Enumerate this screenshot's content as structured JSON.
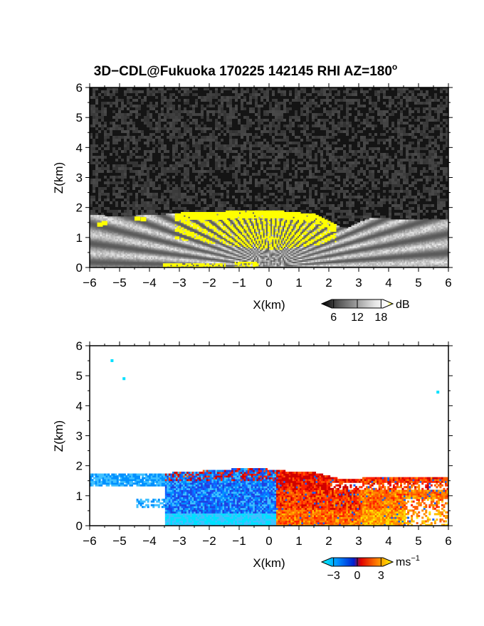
{
  "title": "3D−CDL@Fukuoka 170225 142145 RHI AZ=180",
  "title_degree": "o",
  "chart_data": [
    {
      "type": "heatmap",
      "quantity": "signal intensity",
      "xlabel": "X(km)",
      "ylabel": "Z(km)",
      "xlim": [
        -6,
        6
      ],
      "ylim": [
        0,
        6
      ],
      "x_ticks": [
        -6,
        -5,
        -4,
        -3,
        -2,
        -1,
        0,
        1,
        2,
        3,
        4,
        5,
        6
      ],
      "y_ticks": [
        0,
        1,
        2,
        3,
        4,
        5,
        6
      ],
      "background": "noise",
      "echo_top_km": [
        {
          "x": -6.0,
          "z": 1.75
        },
        {
          "x": -5.5,
          "z": 1.7
        },
        {
          "x": -4.5,
          "z": 1.7
        },
        {
          "x": -3.5,
          "z": 1.75
        },
        {
          "x": -2.5,
          "z": 1.85
        },
        {
          "x": -1.5,
          "z": 1.85
        },
        {
          "x": -0.5,
          "z": 1.9
        },
        {
          "x": 0.5,
          "z": 1.85
        },
        {
          "x": 1.5,
          "z": 1.75
        },
        {
          "x": 2.2,
          "z": 1.4
        },
        {
          "x": 2.5,
          "z": 1.25
        },
        {
          "x": 3.0,
          "z": 1.5
        },
        {
          "x": 3.5,
          "z": 1.65
        },
        {
          "x": 4.0,
          "z": 1.6
        },
        {
          "x": 5.0,
          "z": 1.6
        },
        {
          "x": 6.0,
          "z": 1.6
        }
      ],
      "strong_echo_region_x_km": [
        -3.2,
        2.2
      ],
      "colorbar": {
        "label": "dB",
        "ticks": [
          6,
          12,
          18
        ],
        "range": [
          3,
          21
        ],
        "colors": [
          "#000000",
          "#5a5a5a",
          "#a0a0a0",
          "#dcdcdc",
          "#ffffff",
          "#ffff00"
        ]
      }
    },
    {
      "type": "heatmap",
      "quantity": "radial velocity",
      "xlabel": "X(km)",
      "ylabel": "Z(km)",
      "xlim": [
        -6,
        6
      ],
      "ylim": [
        0,
        6
      ],
      "x_ticks": [
        -6,
        -5,
        -4,
        -3,
        -2,
        -1,
        0,
        1,
        2,
        3,
        4,
        5,
        6
      ],
      "y_ticks": [
        0,
        1,
        2,
        3,
        4,
        5,
        6
      ],
      "echo_top_km": [
        {
          "x": -6.0,
          "z": 1.7
        },
        {
          "x": -4.5,
          "z": 1.7
        },
        {
          "x": -3.0,
          "z": 1.75
        },
        {
          "x": -1.5,
          "z": 1.85
        },
        {
          "x": -0.5,
          "z": 1.9
        },
        {
          "x": 0.5,
          "z": 1.8
        },
        {
          "x": 1.5,
          "z": 1.75
        },
        {
          "x": 2.5,
          "z": 1.5
        },
        {
          "x": 3.5,
          "z": 1.6
        },
        {
          "x": 5.0,
          "z": 1.6
        },
        {
          "x": 6.0,
          "z": 1.6
        }
      ],
      "negative_velocity_region_x_km": [
        -3.5,
        0.2
      ],
      "positive_velocity_region_x_km": [
        0.2,
        6.0
      ],
      "scattered_points_km": [
        {
          "x": -5.3,
          "z": 5.55
        },
        {
          "x": -4.9,
          "z": 4.95
        },
        {
          "x": 5.6,
          "z": 4.5
        }
      ],
      "colorbar": {
        "label": "ms",
        "label_exponent": "−1",
        "ticks": [
          "−3",
          "0",
          "3"
        ],
        "range": [
          -4.5,
          4.5
        ],
        "colors": [
          "#00ffff",
          "#00a0ff",
          "#0040ff",
          "#ff0000",
          "#ff8000",
          "#ffff00"
        ]
      }
    }
  ]
}
